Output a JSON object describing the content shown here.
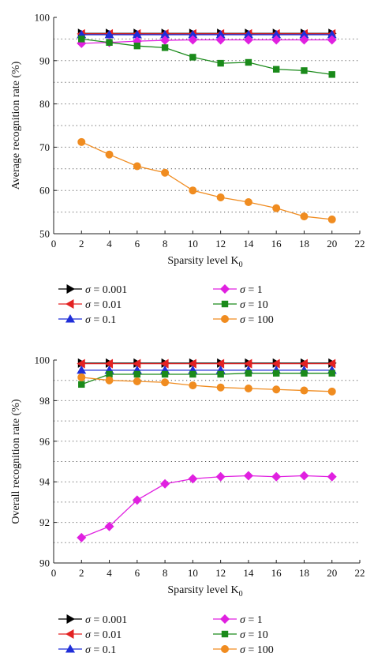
{
  "chart_data": [
    {
      "type": "line",
      "title": "",
      "xlabel": "Sparsity level K",
      "xlabel_sub": "0",
      "ylabel": "Average recognition rate (%)",
      "xlim": [
        0,
        22
      ],
      "ylim": [
        50,
        100
      ],
      "xticks": [
        "0",
        "2",
        "4",
        "6",
        "8",
        "10",
        "12",
        "14",
        "16",
        "18",
        "20",
        "22"
      ],
      "yticks": [
        "50",
        "60",
        "70",
        "80",
        "90",
        "100"
      ],
      "grid": "horizontal dotted",
      "legend_position": "bottom",
      "x": [
        2,
        4,
        6,
        8,
        10,
        12,
        14,
        16,
        18,
        20
      ],
      "series": [
        {
          "name": "σ = 0.001",
          "color": "#000000",
          "marker": "triangle-right",
          "values": [
            96.3,
            96.3,
            96.3,
            96.3,
            96.3,
            96.3,
            96.3,
            96.3,
            96.3,
            96.3
          ]
        },
        {
          "name": "σ = 0.01",
          "color": "#e32222",
          "marker": "triangle-left",
          "values": [
            96.2,
            96.2,
            96.2,
            96.2,
            96.2,
            96.2,
            96.2,
            96.2,
            96.2,
            96.2
          ]
        },
        {
          "name": "σ = 0.1",
          "color": "#1f2ed8",
          "marker": "triangle-up",
          "values": [
            96.0,
            96.0,
            96.0,
            96.0,
            96.0,
            96.0,
            96.0,
            96.0,
            96.0,
            96.0
          ]
        },
        {
          "name": "σ = 1",
          "color": "#e020e0",
          "marker": "diamond",
          "values": [
            94.0,
            94.2,
            94.5,
            94.7,
            94.8,
            94.8,
            94.8,
            94.8,
            94.8,
            94.8
          ]
        },
        {
          "name": "σ = 10",
          "color": "#1a8a1a",
          "marker": "square",
          "values": [
            95.0,
            94.2,
            93.4,
            93.0,
            90.8,
            89.4,
            89.6,
            88.0,
            87.7,
            86.8
          ]
        },
        {
          "name": "σ = 100",
          "color": "#f08c20",
          "marker": "circle",
          "values": [
            71.2,
            68.3,
            65.6,
            64.1,
            60.0,
            58.4,
            57.3,
            55.9,
            54.0,
            53.3
          ]
        }
      ]
    },
    {
      "type": "line",
      "title": "",
      "xlabel": "Sparsity level K",
      "xlabel_sub": "0",
      "ylabel": "Overall recognition rate (%)",
      "xlim": [
        0,
        22
      ],
      "ylim": [
        90,
        100
      ],
      "xticks": [
        "0",
        "2",
        "4",
        "6",
        "8",
        "10",
        "12",
        "14",
        "16",
        "18",
        "20",
        "22"
      ],
      "yticks": [
        "90",
        "92",
        "94",
        "96",
        "98",
        "100"
      ],
      "grid": "horizontal dotted",
      "legend_position": "bottom",
      "x": [
        2,
        4,
        6,
        8,
        10,
        12,
        14,
        16,
        18,
        20
      ],
      "series": [
        {
          "name": "σ = 0.001",
          "color": "#000000",
          "marker": "triangle-right",
          "values": [
            99.85,
            99.85,
            99.85,
            99.85,
            99.85,
            99.85,
            99.85,
            99.85,
            99.85,
            99.85
          ]
        },
        {
          "name": "σ = 0.01",
          "color": "#e32222",
          "marker": "triangle-left",
          "values": [
            99.82,
            99.82,
            99.82,
            99.82,
            99.82,
            99.82,
            99.82,
            99.82,
            99.82,
            99.82
          ]
        },
        {
          "name": "σ = 0.1",
          "color": "#1f2ed8",
          "marker": "triangle-up",
          "values": [
            99.5,
            99.5,
            99.5,
            99.5,
            99.5,
            99.5,
            99.5,
            99.5,
            99.5,
            99.5
          ]
        },
        {
          "name": "σ = 1",
          "color": "#e020e0",
          "marker": "diamond",
          "values": [
            91.25,
            91.8,
            93.1,
            93.9,
            94.15,
            94.25,
            94.3,
            94.25,
            94.3,
            94.25
          ]
        },
        {
          "name": "σ = 10",
          "color": "#1a8a1a",
          "marker": "square",
          "values": [
            98.8,
            99.3,
            99.3,
            99.3,
            99.3,
            99.3,
            99.35,
            99.35,
            99.35,
            99.35
          ]
        },
        {
          "name": "σ = 100",
          "color": "#f08c20",
          "marker": "circle",
          "values": [
            99.15,
            99.0,
            98.95,
            98.9,
            98.75,
            98.65,
            98.6,
            98.55,
            98.5,
            98.45
          ]
        }
      ]
    }
  ]
}
